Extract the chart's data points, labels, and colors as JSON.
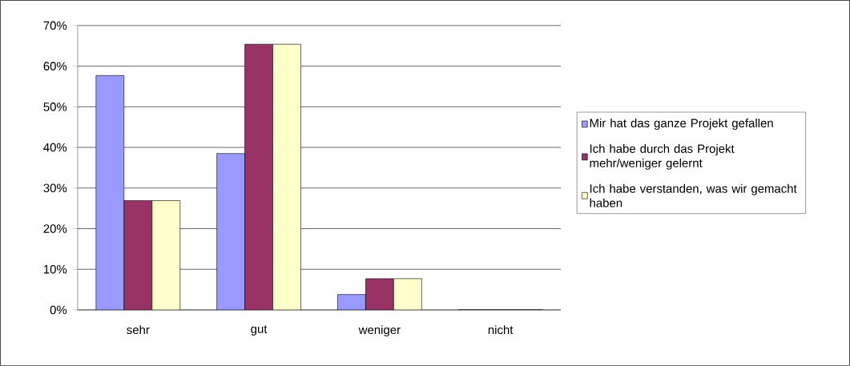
{
  "chart_data": {
    "type": "bar",
    "categories": [
      "sehr",
      "gut",
      "weniger",
      "nicht"
    ],
    "series": [
      {
        "name": "Mir hat das ganze Projekt gefallen",
        "color": "#9999ff",
        "values": [
          57.7,
          38.5,
          3.8,
          0
        ]
      },
      {
        "name": "Ich habe durch das Projekt mehr/weniger gelernt",
        "color": "#993366",
        "values": [
          26.9,
          65.4,
          7.7,
          0
        ]
      },
      {
        "name": "Ich habe verstanden, was wir gemacht haben",
        "color": "#ffffcc",
        "values": [
          26.9,
          65.4,
          7.7,
          0
        ]
      }
    ],
    "ylim": [
      0,
      70
    ],
    "yticks": [
      {
        "value": 0,
        "label": "0%"
      },
      {
        "value": 10,
        "label": "10%"
      },
      {
        "value": 20,
        "label": "20%"
      },
      {
        "value": 30,
        "label": "30%"
      },
      {
        "value": 40,
        "label": "40%"
      },
      {
        "value": 50,
        "label": "50%"
      },
      {
        "value": 60,
        "label": "60%"
      },
      {
        "value": 70,
        "label": "70%"
      }
    ],
    "grid": "y",
    "legend": "right"
  }
}
